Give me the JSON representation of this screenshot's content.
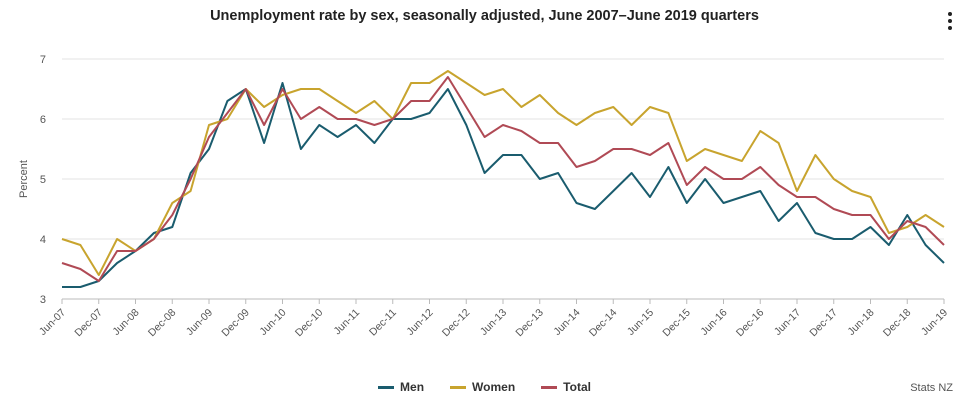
{
  "chart_data": {
    "type": "line",
    "title": "Unemployment rate by sex, seasonally adjusted, June 2007–June 2019 quarters",
    "ylabel": "Percent",
    "ylim": [
      3,
      7
    ],
    "yticks": [
      3,
      4,
      5,
      6,
      7
    ],
    "grid": true,
    "legend": "bottom",
    "x": [
      "Jun-07",
      "Sep-07",
      "Dec-07",
      "Mar-08",
      "Jun-08",
      "Sep-08",
      "Dec-08",
      "Mar-09",
      "Jun-09",
      "Sep-09",
      "Dec-09",
      "Mar-10",
      "Jun-10",
      "Sep-10",
      "Dec-10",
      "Mar-11",
      "Jun-11",
      "Sep-11",
      "Dec-11",
      "Mar-12",
      "Jun-12",
      "Sep-12",
      "Dec-12",
      "Mar-13",
      "Jun-13",
      "Sep-13",
      "Dec-13",
      "Mar-14",
      "Jun-14",
      "Sep-14",
      "Dec-14",
      "Mar-15",
      "Jun-15",
      "Sep-15",
      "Dec-15",
      "Mar-16",
      "Jun-16",
      "Sep-16",
      "Dec-16",
      "Mar-17",
      "Jun-17",
      "Sep-17",
      "Dec-17",
      "Mar-18",
      "Jun-18",
      "Sep-18",
      "Dec-18",
      "Mar-19",
      "Jun-19"
    ],
    "xtick_labels": [
      "Jun-07",
      "Dec-07",
      "Jun-08",
      "Dec-08",
      "Jun-09",
      "Dec-09",
      "Jun-10",
      "Dec-10",
      "Jun-11",
      "Dec-11",
      "Jun-12",
      "Dec-12",
      "Jun-13",
      "Dec-13",
      "Jun-14",
      "Dec-14",
      "Jun-15",
      "Dec-15",
      "Jun-16",
      "Dec-16",
      "Jun-17",
      "Dec-17",
      "Jun-18",
      "Dec-18",
      "Jun-19"
    ],
    "series": [
      {
        "name": "Men",
        "color": "#1a5c6e",
        "values": [
          3.2,
          3.2,
          3.3,
          3.6,
          3.8,
          4.1,
          4.2,
          5.1,
          5.5,
          6.3,
          6.5,
          5.6,
          6.6,
          5.5,
          5.9,
          5.7,
          5.9,
          5.6,
          6.0,
          6.0,
          6.1,
          6.5,
          5.9,
          5.1,
          5.4,
          5.4,
          5.0,
          5.1,
          4.6,
          4.5,
          4.8,
          5.1,
          4.7,
          5.2,
          4.6,
          5.0,
          4.6,
          4.7,
          4.8,
          4.3,
          4.6,
          4.1,
          4.0,
          4.0,
          4.2,
          3.9,
          4.4,
          3.9,
          3.6
        ]
      },
      {
        "name": "Women",
        "color": "#c8a42e",
        "values": [
          4.0,
          3.9,
          3.4,
          4.0,
          3.8,
          4.0,
          4.6,
          4.8,
          5.9,
          6.0,
          6.5,
          6.2,
          6.4,
          6.5,
          6.5,
          6.3,
          6.1,
          6.3,
          6.0,
          6.6,
          6.6,
          6.8,
          6.6,
          6.4,
          6.5,
          6.2,
          6.4,
          6.1,
          5.9,
          6.1,
          6.2,
          5.9,
          6.2,
          6.1,
          5.3,
          5.5,
          5.4,
          5.3,
          5.8,
          5.6,
          4.8,
          5.4,
          5.0,
          4.8,
          4.7,
          4.1,
          4.2,
          4.4,
          4.2
        ]
      },
      {
        "name": "Total",
        "color": "#b04a55",
        "values": [
          3.6,
          3.5,
          3.3,
          3.8,
          3.8,
          4.0,
          4.4,
          5.0,
          5.7,
          6.1,
          6.5,
          5.9,
          6.5,
          6.0,
          6.2,
          6.0,
          6.0,
          5.9,
          6.0,
          6.3,
          6.3,
          6.7,
          6.2,
          5.7,
          5.9,
          5.8,
          5.6,
          5.6,
          5.2,
          5.3,
          5.5,
          5.5,
          5.4,
          5.6,
          4.9,
          5.2,
          5.0,
          5.0,
          5.2,
          4.9,
          4.7,
          4.7,
          4.5,
          4.4,
          4.4,
          4.0,
          4.3,
          4.2,
          3.9
        ]
      }
    ],
    "source": "Stats NZ"
  }
}
